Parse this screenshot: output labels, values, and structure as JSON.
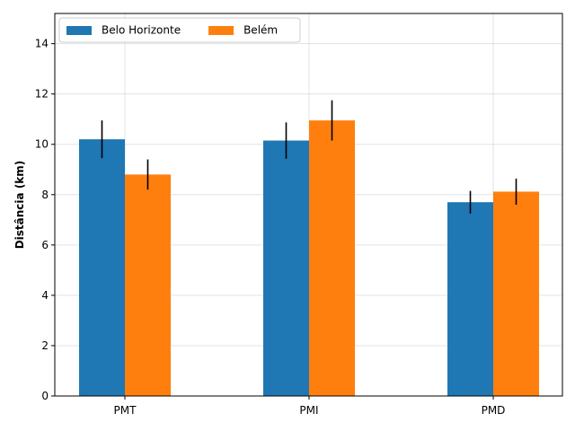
{
  "chart_data": {
    "type": "bar",
    "categories": [
      "PMT",
      "PMI",
      "PMD"
    ],
    "series": [
      {
        "name": "Belo Horizonte",
        "color": "#1f77b4",
        "values": [
          10.2,
          10.15,
          7.7
        ],
        "errors": [
          0.75,
          0.72,
          0.45
        ]
      },
      {
        "name": "Belém",
        "color": "#ff7f0e",
        "values": [
          8.8,
          10.95,
          8.12
        ],
        "errors": [
          0.6,
          0.8,
          0.52
        ]
      }
    ],
    "xlabel": "",
    "ylabel": "Distância (km)",
    "ylim": [
      0,
      15.2
    ],
    "yticks": [
      0,
      2,
      4,
      6,
      8,
      10,
      12,
      14
    ],
    "grid": true,
    "legend_position": "top-left"
  }
}
